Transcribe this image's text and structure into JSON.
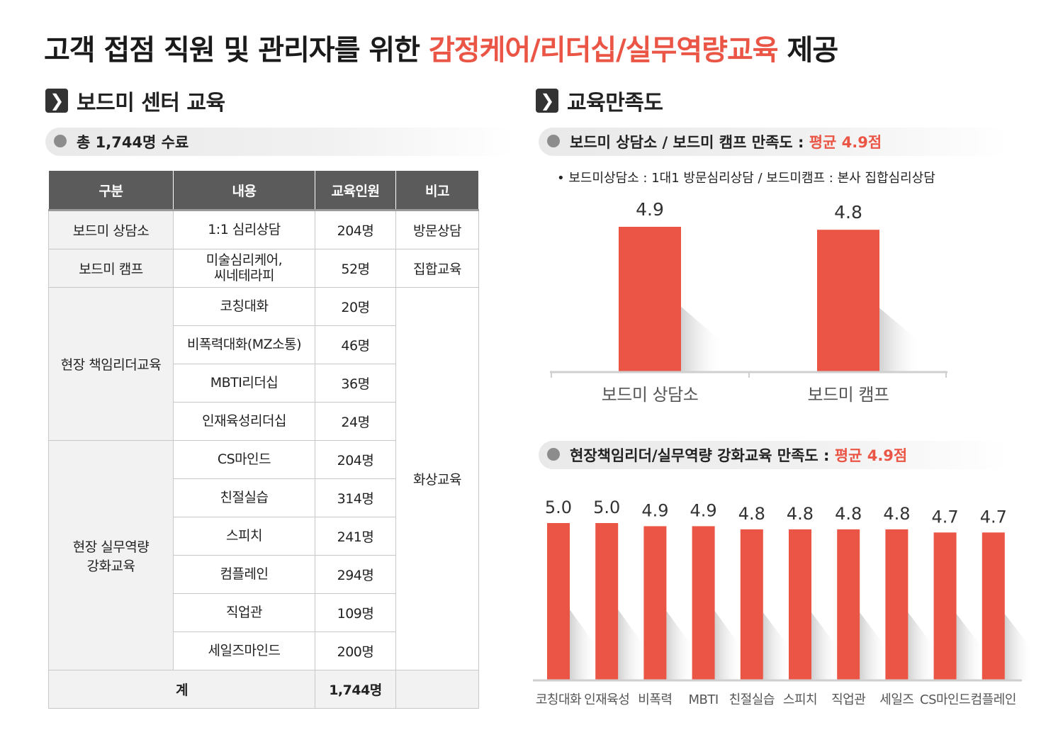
{
  "title": {
    "prefix": "고객 접점 직원 및 관리자를 위한 ",
    "highlight": "감정케어/리더십/실무역량교육",
    "suffix": " 제공"
  },
  "colors": {
    "accent": "#ea5545",
    "header_bg": "#5b5b5b",
    "bar": "#ea5545"
  },
  "left": {
    "icon": "chevron-right-icon",
    "heading": "보드미 센터 교육",
    "summary": "총 1,744명 수료",
    "table": {
      "headers": [
        "구분",
        "내용",
        "교육인원",
        "비고"
      ],
      "groups": [
        {
          "category": "보드미 상담소",
          "rows": [
            {
              "content": "1:1 심리상담",
              "count": "204명"
            }
          ],
          "note": "방문상담"
        },
        {
          "category": "보드미 캠프",
          "rows": [
            {
              "content": "미술심리케어,\n씨네테라피",
              "count": "52명"
            }
          ],
          "note": "집합교육"
        },
        {
          "category": "현장 책임리더교육",
          "rows": [
            {
              "content": "코칭대화",
              "count": "20명"
            },
            {
              "content": "비폭력대화(MZ소통)",
              "count": "46명"
            },
            {
              "content": "MBTI리더십",
              "count": "36명"
            },
            {
              "content": "인재육성리더십",
              "count": "24명"
            }
          ]
        },
        {
          "category": "현장 실무역량\n강화교육",
          "rows": [
            {
              "content": "CS마인드",
              "count": "204명"
            },
            {
              "content": "친절실습",
              "count": "314명"
            },
            {
              "content": "스피치",
              "count": "241명"
            },
            {
              "content": "컴플레인",
              "count": "294명"
            },
            {
              "content": "직업관",
              "count": "109명"
            },
            {
              "content": "세일즈마인드",
              "count": "200명"
            }
          ]
        }
      ],
      "shared_note": "화상교육",
      "total_label": "계",
      "total_count": "1,744명"
    }
  },
  "right": {
    "icon": "chevron-right-icon",
    "heading": "교육만족도",
    "pill1": {
      "text": "보드미 상담소 / 보드미 캠프 만족도 : ",
      "avg": "평균 4.9점"
    },
    "note1": "•  보드미상담소 : 1대1 방문심리상담 / 보드미캠프 : 본사 집합심리상담",
    "pill2": {
      "text": "현장책임리더/실무역량 강화교육 만족도 : ",
      "avg": "평균 4.9점"
    }
  },
  "chart_data": [
    {
      "type": "bar",
      "categories": [
        "보드미 상담소",
        "보드미 캠프"
      ],
      "values": [
        4.9,
        4.8
      ],
      "value_labels": [
        "4.9",
        "4.8"
      ],
      "title": "",
      "xlabel": "",
      "ylabel": "",
      "grid": false,
      "legend": "none"
    },
    {
      "type": "bar",
      "categories": [
        "코칭대화",
        "인재육성",
        "비폭력",
        "MBTI",
        "친절실습",
        "스피치",
        "직업관",
        "세일즈",
        "CS마인드",
        "컴플레인"
      ],
      "values": [
        5.0,
        5.0,
        4.9,
        4.9,
        4.8,
        4.8,
        4.8,
        4.8,
        4.7,
        4.7
      ],
      "value_labels": [
        "5.0",
        "5.0",
        "4.9",
        "4.9",
        "4.8",
        "4.8",
        "4.8",
        "4.8",
        "4.7",
        "4.7"
      ],
      "title": "",
      "xlabel": "",
      "ylabel": "",
      "grid": false,
      "legend": "none"
    }
  ]
}
